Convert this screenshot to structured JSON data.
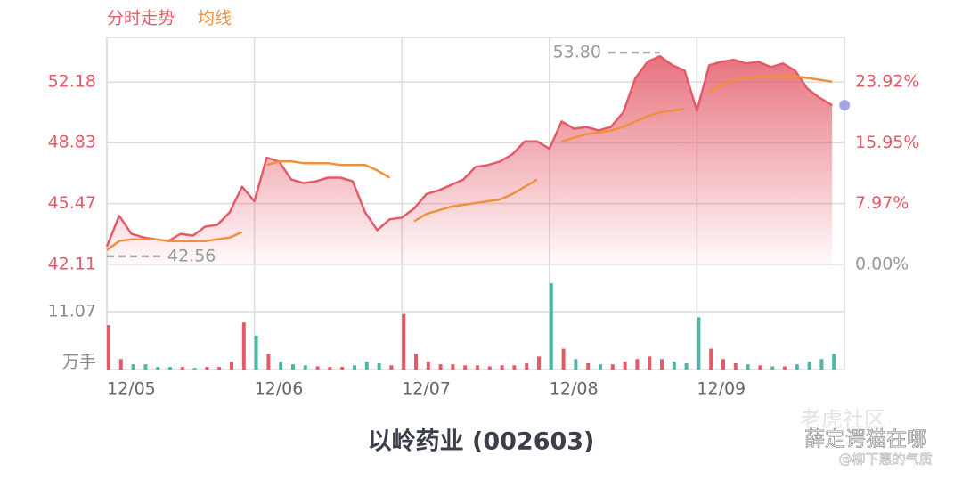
{
  "chart_data": {
    "type": "line",
    "title": "以岭药业 (002603)",
    "x": [
      0,
      20,
      40,
      60,
      80,
      100,
      120,
      140,
      160,
      180,
      200,
      220,
      240,
      260,
      280,
      300,
      320,
      340,
      360,
      380,
      400,
      420,
      440,
      460,
      480,
      500,
      520,
      540,
      560,
      580,
      600,
      620,
      640,
      660,
      680,
      700,
      720,
      740,
      760,
      780,
      800,
      820,
      840,
      860,
      880,
      900,
      920,
      940,
      960,
      980,
      1000,
      1020,
      1040,
      1060,
      1080,
      1100,
      1120,
      1140,
      1160,
      1180
    ],
    "xlim": [
      0,
      1200
    ],
    "xticks": [
      {
        "value": 0,
        "label": "12/05"
      },
      {
        "value": 240,
        "label": "12/06"
      },
      {
        "value": 480,
        "label": "12/07"
      },
      {
        "value": 720,
        "label": "12/08"
      },
      {
        "value": 960,
        "label": "12/09"
      }
    ],
    "series": [
      {
        "name": "分时走势",
        "color": "#e45a68",
        "values": [
          43.1,
          44.8,
          43.8,
          43.6,
          43.5,
          43.4,
          43.8,
          43.7,
          44.2,
          44.3,
          45.0,
          46.4,
          45.6,
          48.0,
          47.8,
          46.8,
          46.6,
          46.7,
          46.9,
          46.9,
          46.7,
          45.0,
          44.0,
          44.6,
          44.7,
          45.2,
          46.0,
          46.2,
          46.5,
          46.8,
          47.5,
          47.6,
          47.8,
          48.2,
          48.9,
          48.9,
          48.5,
          50.0,
          49.6,
          49.7,
          49.5,
          49.7,
          50.5,
          52.4,
          53.3,
          53.6,
          53.1,
          52.8,
          50.6,
          53.1,
          53.3,
          53.4,
          53.2,
          53.3,
          53.0,
          53.2,
          52.8,
          51.8,
          51.3,
          50.9
        ]
      },
      {
        "name": "均线",
        "color": "#f0903c",
        "values": [
          42.9,
          43.4,
          43.5,
          43.5,
          43.5,
          43.4,
          43.4,
          43.4,
          43.4,
          43.5,
          43.6,
          43.9,
          null,
          47.6,
          47.8,
          47.8,
          47.7,
          47.7,
          47.7,
          47.6,
          47.6,
          47.6,
          47.3,
          46.9,
          null,
          44.5,
          44.9,
          45.1,
          45.3,
          45.4,
          45.5,
          45.6,
          45.7,
          46.0,
          46.4,
          46.8,
          null,
          48.9,
          49.1,
          49.3,
          49.4,
          49.5,
          49.7,
          50.0,
          50.3,
          50.5,
          50.6,
          50.7,
          null,
          51.6,
          52.0,
          52.3,
          52.4,
          52.5,
          52.5,
          52.5,
          52.5,
          52.4,
          52.3,
          52.2
        ]
      }
    ],
    "ylim": [
      42.11,
      54.64
    ],
    "yticks": [
      42.11,
      45.47,
      48.83,
      52.18
    ],
    "y2lim": [
      0,
      29.76
    ],
    "y2ticks": [
      {
        "value": 0,
        "label": "0.00%"
      },
      {
        "value": 7.97,
        "label": "7.97%"
      },
      {
        "value": 15.95,
        "label": "15.95%"
      },
      {
        "value": 23.92,
        "label": "23.92%"
      }
    ],
    "annotations": [
      {
        "value": 53.8,
        "label": "53.80"
      },
      {
        "value": 42.56,
        "label": "42.56"
      }
    ],
    "volume": {
      "unit": "万手",
      "ylim": [
        0,
        20.11
      ],
      "yticks": [
        11.07
      ],
      "up_color": "#e45a68",
      "down_color": "#4cb8a8",
      "values": [
        8.5,
        2,
        1,
        1,
        0.5,
        0.5,
        0.5,
        0.3,
        0.5,
        0.5,
        1.5,
        9,
        6.5,
        3,
        1.5,
        1,
        0.8,
        0.6,
        0.5,
        0.5,
        0.8,
        1.5,
        1.2,
        0.8,
        10.6,
        3,
        1.5,
        1,
        1,
        0.8,
        0.8,
        0.6,
        0.8,
        0.8,
        1.2,
        2.5,
        16.5,
        4,
        2,
        1.2,
        1,
        1,
        1.5,
        2,
        2.5,
        2,
        1.5,
        1.2,
        10,
        4,
        2,
        1.2,
        1,
        0.8,
        0.6,
        0.6,
        1,
        1.5,
        2,
        3
      ]
    },
    "grid": true,
    "watermark": [
      "老虎社区",
      "薛定谔猫在哪",
      "@柳下惠的气质"
    ]
  }
}
